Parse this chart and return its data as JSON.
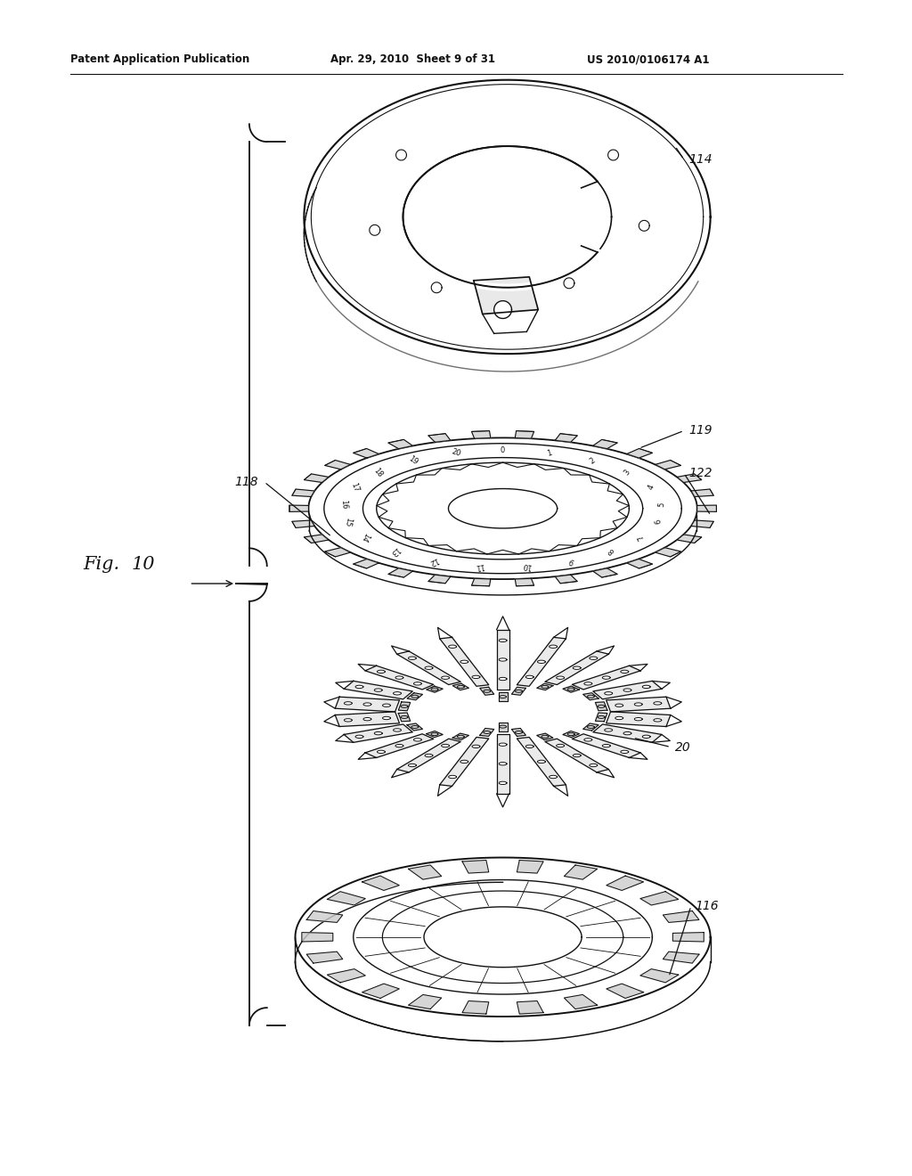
{
  "background_color": "#ffffff",
  "header_left": "Patent Application Publication",
  "header_center": "Apr. 29, 2010  Sheet 9 of 31",
  "header_right": "US 2010/0106174 A1",
  "figure_label": "Fig. 10",
  "text_color": "#111111",
  "line_color": "#111111",
  "page_width": 1.0,
  "page_height": 1.0
}
